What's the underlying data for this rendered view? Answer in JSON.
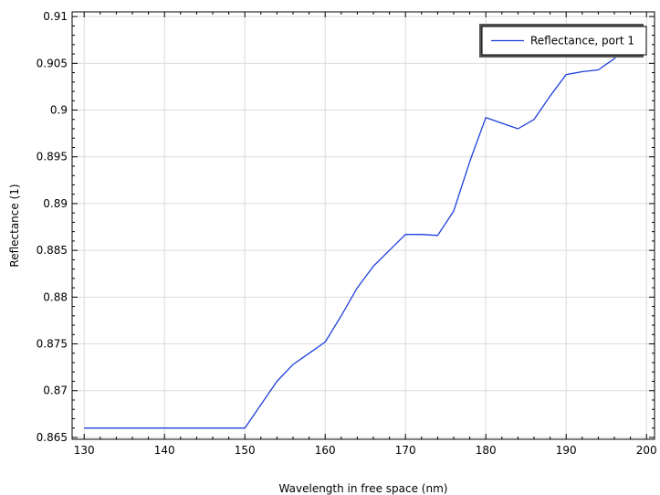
{
  "chart_data": {
    "type": "line",
    "xlabel": "Wavelength in free space (nm)",
    "ylabel": "Reflectance (1)",
    "xlim": [
      128.5,
      201.0
    ],
    "ylim": [
      0.8648,
      0.9105
    ],
    "x_ticks": [
      130,
      140,
      150,
      160,
      170,
      180,
      190,
      200
    ],
    "x_tick_labels": [
      "130",
      "140",
      "150",
      "160",
      "170",
      "180",
      "190",
      "200"
    ],
    "y_ticks": [
      0.865,
      0.87,
      0.875,
      0.88,
      0.885,
      0.89,
      0.895,
      0.9,
      0.905,
      0.91
    ],
    "y_tick_labels": [
      "0.865",
      "0.87",
      "0.875",
      "0.88",
      "0.885",
      "0.89",
      "0.895",
      "0.9",
      "0.905",
      "0.91"
    ],
    "grid": true,
    "legend_position": "top-right",
    "series": [
      {
        "name": "Reflectance, port 1",
        "color": "#1f3fdc",
        "x": [
          130,
          132,
          134,
          136,
          138,
          140,
          142,
          144,
          146,
          148,
          150,
          152,
          154,
          156,
          158,
          160,
          162,
          164,
          166,
          168,
          170,
          172,
          174,
          176,
          178,
          180,
          182,
          184,
          186,
          188,
          190,
          192,
          194,
          196,
          198,
          200
        ],
        "y": [
          0.866,
          0.866,
          0.866,
          0.866,
          0.866,
          0.866,
          0.866,
          0.866,
          0.866,
          0.866,
          0.866,
          0.8685,
          0.871,
          0.8728,
          0.874,
          0.8752,
          0.878,
          0.881,
          0.8833,
          0.885,
          0.8867,
          0.8867,
          0.8866,
          0.8892,
          0.8945,
          0.8992,
          0.8986,
          0.898,
          0.899,
          0.9015,
          0.9038,
          0.9041,
          0.9043,
          0.9055,
          0.9075,
          0.909
        ]
      }
    ]
  }
}
